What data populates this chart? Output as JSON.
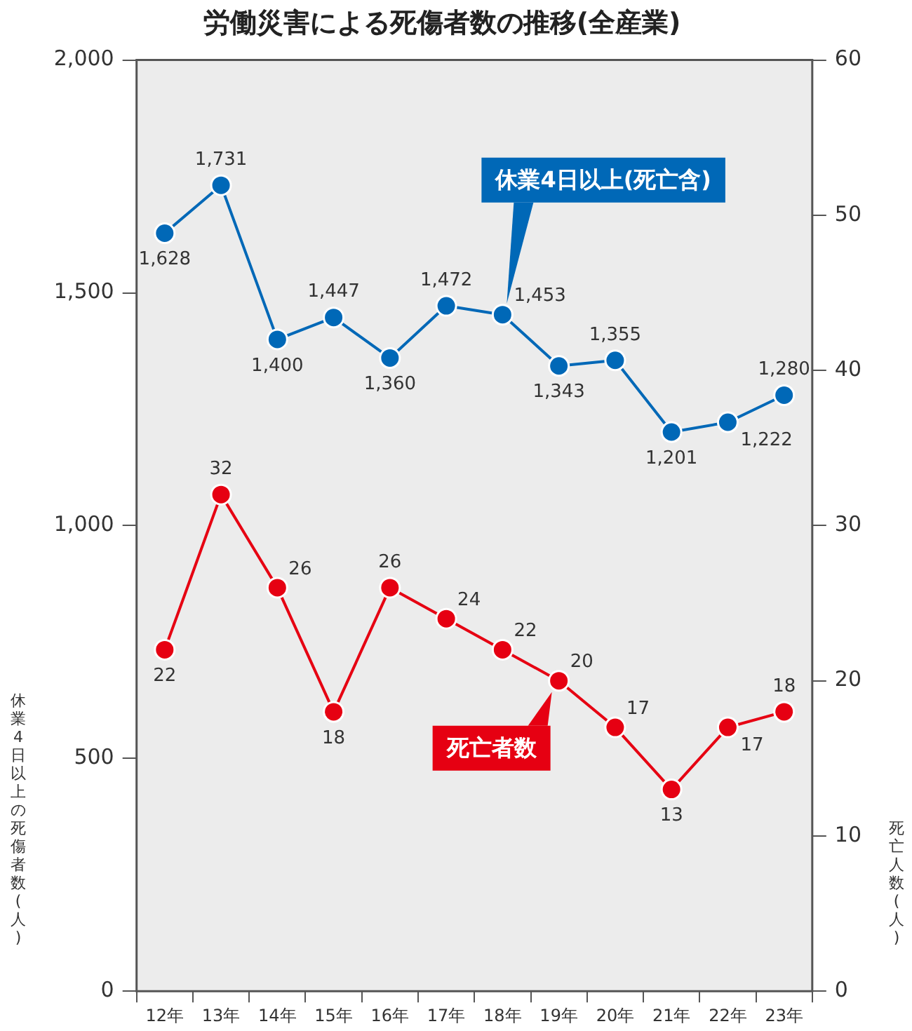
{
  "chart_data": {
    "type": "line",
    "title": "労働災害による死傷者数の推移(全産業)",
    "ylabel": "休業4日以上の死傷者数(人)",
    "y2label": "死亡人数(人)",
    "categories": [
      "12年",
      "13年",
      "14年",
      "15年",
      "16年",
      "17年",
      "18年",
      "19年",
      "20年",
      "21年",
      "22年",
      "23年"
    ],
    "series": [
      {
        "name": "休業4日以上(死亡含)",
        "color": "#0068b7",
        "values": [
          1628,
          1731,
          1400,
          1447,
          1360,
          1472,
          1453,
          1343,
          1355,
          1201,
          1222,
          1280
        ],
        "value_labels": [
          "1,628",
          "1,731",
          "1,400",
          "1,447",
          "1,360",
          "1,472",
          "1,453",
          "1,343",
          "1,355",
          "1,201",
          "1,222",
          "1,280"
        ]
      },
      {
        "name": "死亡者数",
        "color": "#e60012",
        "axis": "y2",
        "values": [
          22,
          32,
          26,
          18,
          26,
          24,
          22,
          20,
          17,
          13,
          17,
          18
        ],
        "value_labels": [
          "22",
          "32",
          "26",
          "18",
          "26",
          "24",
          "22",
          "20",
          "17",
          "13",
          "17",
          "18"
        ]
      }
    ],
    "ylim": [
      0,
      2000
    ],
    "yticks": [
      0,
      {
        "value": 500,
        "label": "500"
      },
      {
        "value": 1000,
        "label": "1,000"
      },
      {
        "value": 1500,
        "label": "1,500"
      },
      {
        "value": 2000,
        "label": "2,000"
      }
    ],
    "y2lim": [
      0,
      60
    ],
    "y2ticks": [
      0,
      10,
      20,
      30,
      40,
      50,
      60
    ],
    "grid": false,
    "marker": "circle",
    "line_style": "solid"
  }
}
